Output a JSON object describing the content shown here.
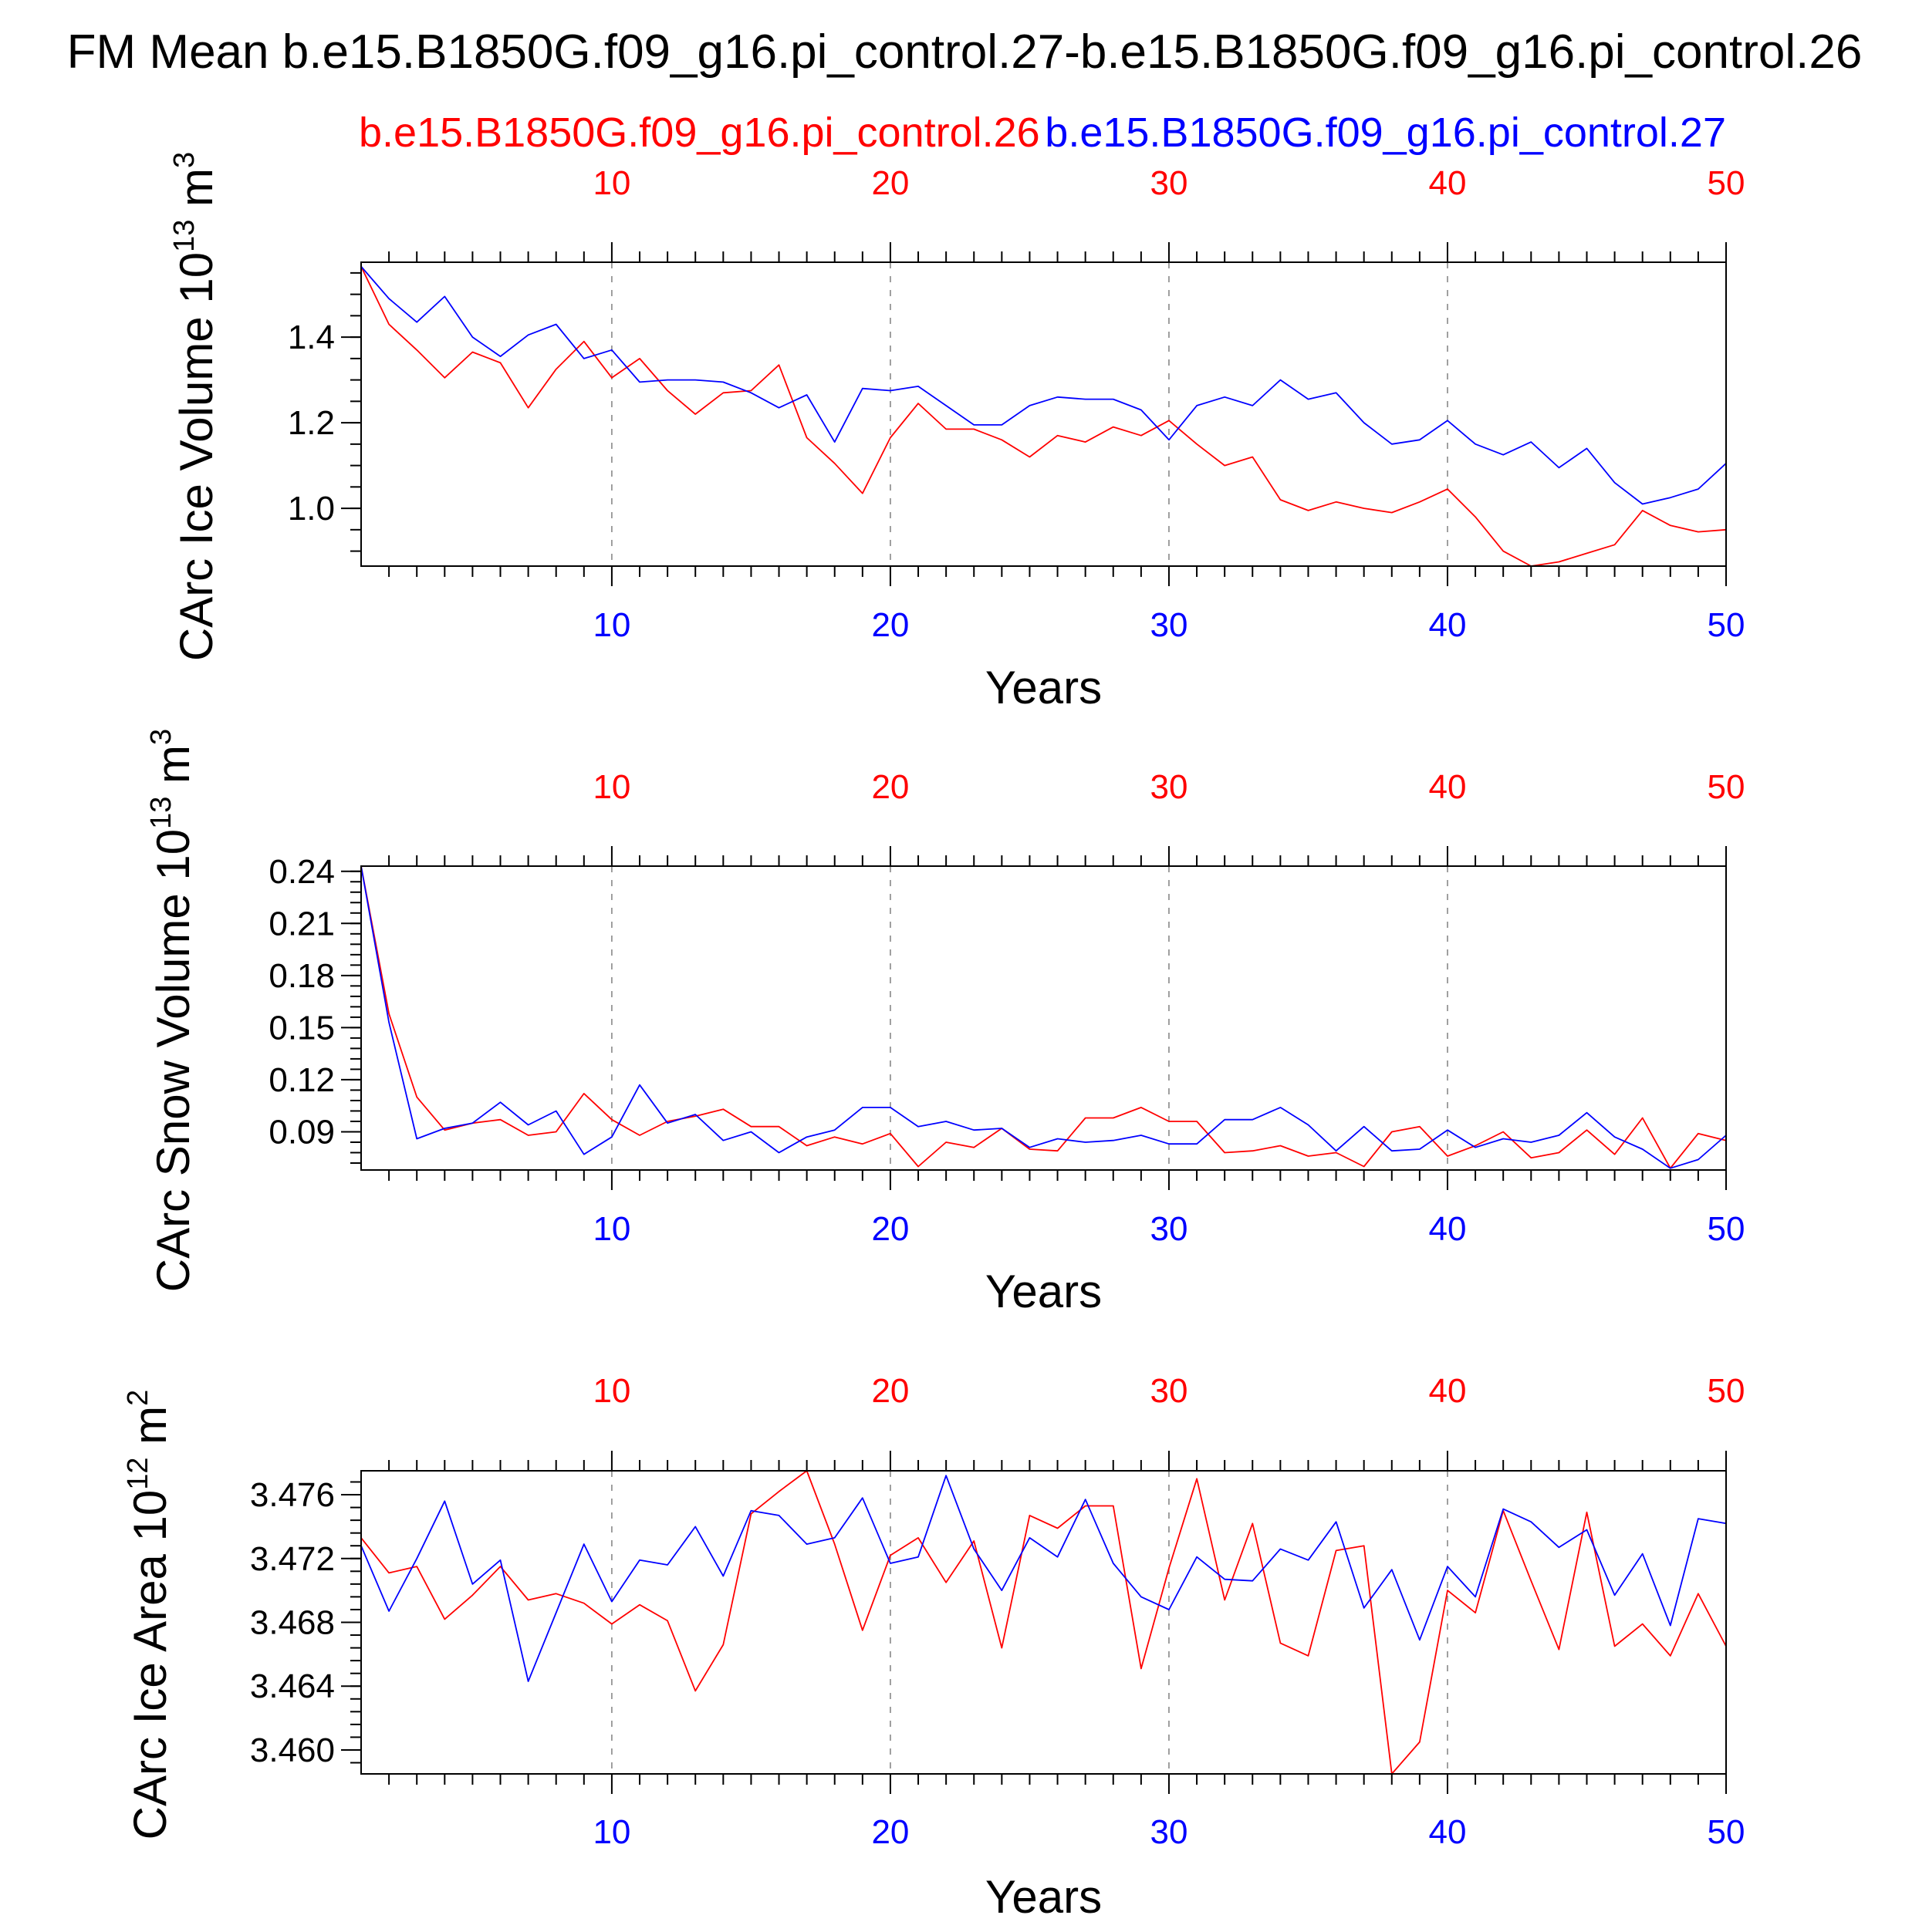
{
  "title": "FM Mean b.e15.B1850G.f09_g16.pi_control.27-b.e15.B1850G.f09_g16.pi_control.26",
  "legend": [
    {
      "name": "b.e15.B1850G.f09_g16.pi_control.26",
      "color": "#ff0000"
    },
    {
      "name": "b.e15.B1850G.f09_g16.pi_control.27",
      "color": "#0000ff"
    }
  ],
  "colors": {
    "red": "#ff0000",
    "blue": "#0000ff",
    "axis": "#000000",
    "grid": "#888888"
  },
  "chart_data": [
    {
      "type": "line",
      "ylabel": "CArc Ice Volume 10",
      "ylabel_exp": "13",
      "ylabel_unit": " m",
      "ylabel_unit_exp": "3",
      "xlabel": "Years",
      "xlim": [
        1,
        50
      ],
      "ylim": [
        0.865,
        1.575
      ],
      "yticks": [
        1.0,
        1.2,
        1.4
      ],
      "ytick_labels": [
        "1.0",
        "1.2",
        "1.4"
      ],
      "yminor_step": 0.05,
      "xticks": [
        10,
        20,
        30,
        40,
        50
      ],
      "xtick_labels": [
        "10",
        "20",
        "30",
        "40",
        "50"
      ],
      "grid": "vertical dashed at major x ticks",
      "series": [
        {
          "name": "b.e15.B1850G.f09_g16.pi_control.26",
          "color": "#ff0000",
          "x": [
            1,
            2,
            3,
            4,
            5,
            6,
            7,
            8,
            9,
            10,
            11,
            12,
            13,
            14,
            15,
            16,
            17,
            18,
            19,
            20,
            21,
            22,
            23,
            24,
            25,
            26,
            27,
            28,
            29,
            30,
            31,
            32,
            33,
            34,
            35,
            36,
            37,
            38,
            39,
            40,
            41,
            42,
            43,
            44,
            45,
            46,
            47,
            48,
            49,
            50
          ],
          "values": [
            1.565,
            1.43,
            1.37,
            1.305,
            1.365,
            1.34,
            1.235,
            1.325,
            1.39,
            1.305,
            1.35,
            1.275,
            1.22,
            1.27,
            1.275,
            1.335,
            1.165,
            1.105,
            1.035,
            1.165,
            1.245,
            1.185,
            1.185,
            1.16,
            1.12,
            1.17,
            1.155,
            1.19,
            1.17,
            1.205,
            1.15,
            1.1,
            1.12,
            1.02,
            0.995,
            1.015,
            1.0,
            0.99,
            1.015,
            1.045,
            0.98,
            0.9,
            0.865,
            0.875,
            0.895,
            0.915,
            0.995,
            0.96,
            0.945,
            0.95
          ]
        },
        {
          "name": "b.e15.B1850G.f09_g16.pi_control.27",
          "color": "#0000ff",
          "x": [
            1,
            2,
            3,
            4,
            5,
            6,
            7,
            8,
            9,
            10,
            11,
            12,
            13,
            14,
            15,
            16,
            17,
            18,
            19,
            20,
            21,
            22,
            23,
            24,
            25,
            26,
            27,
            28,
            29,
            30,
            31,
            32,
            33,
            34,
            35,
            36,
            37,
            38,
            39,
            40,
            41,
            42,
            43,
            44,
            45,
            46,
            47,
            48,
            49,
            50
          ],
          "values": [
            1.565,
            1.49,
            1.435,
            1.495,
            1.4,
            1.355,
            1.405,
            1.43,
            1.35,
            1.37,
            1.295,
            1.3,
            1.3,
            1.295,
            1.27,
            1.235,
            1.265,
            1.155,
            1.28,
            1.275,
            1.285,
            1.24,
            1.195,
            1.195,
            1.24,
            1.26,
            1.255,
            1.255,
            1.23,
            1.16,
            1.24,
            1.26,
            1.24,
            1.3,
            1.255,
            1.27,
            1.2,
            1.15,
            1.16,
            1.205,
            1.15,
            1.125,
            1.155,
            1.095,
            1.14,
            1.06,
            1.01,
            1.025,
            1.045,
            1.105
          ]
        }
      ]
    },
    {
      "type": "line",
      "ylabel": "CArc Snow Volume 10",
      "ylabel_exp": "13",
      "ylabel_unit": " m",
      "ylabel_unit_exp": "3",
      "xlabel": "Years",
      "xlim": [
        1,
        50
      ],
      "ylim": [
        0.068,
        0.243
      ],
      "yticks": [
        0.09,
        0.12,
        0.15,
        0.18,
        0.21,
        0.24
      ],
      "ytick_labels": [
        "0.09",
        "0.12",
        "0.15",
        "0.18",
        "0.21",
        "0.24"
      ],
      "yminor_step": 0.006,
      "xticks": [
        10,
        20,
        30,
        40,
        50
      ],
      "xtick_labels": [
        "10",
        "20",
        "30",
        "40",
        "50"
      ],
      "grid": "vertical dashed at major x ticks",
      "series": [
        {
          "name": "b.e15.B1850G.f09_g16.pi_control.26",
          "color": "#ff0000",
          "x": [
            1,
            2,
            3,
            4,
            5,
            6,
            7,
            8,
            9,
            10,
            11,
            12,
            13,
            14,
            15,
            16,
            17,
            18,
            19,
            20,
            21,
            22,
            23,
            24,
            25,
            26,
            27,
            28,
            29,
            30,
            31,
            32,
            33,
            34,
            35,
            36,
            37,
            38,
            39,
            40,
            41,
            42,
            43,
            44,
            45,
            46,
            47,
            48,
            49,
            50
          ],
          "values": [
            0.243,
            0.158,
            0.11,
            0.091,
            0.095,
            0.097,
            0.088,
            0.09,
            0.112,
            0.097,
            0.088,
            0.096,
            0.099,
            0.103,
            0.093,
            0.093,
            0.082,
            0.087,
            0.083,
            0.089,
            0.07,
            0.084,
            0.081,
            0.092,
            0.08,
            0.079,
            0.098,
            0.098,
            0.104,
            0.096,
            0.096,
            0.078,
            0.079,
            0.082,
            0.076,
            0.078,
            0.07,
            0.09,
            0.093,
            0.076,
            0.082,
            0.09,
            0.075,
            0.078,
            0.091,
            0.077,
            0.098,
            0.069,
            0.089,
            0.085
          ]
        },
        {
          "name": "b.e15.B1850G.f09_g16.pi_control.27",
          "color": "#0000ff",
          "x": [
            1,
            2,
            3,
            4,
            5,
            6,
            7,
            8,
            9,
            10,
            11,
            12,
            13,
            14,
            15,
            16,
            17,
            18,
            19,
            20,
            21,
            22,
            23,
            24,
            25,
            26,
            27,
            28,
            29,
            30,
            31,
            32,
            33,
            34,
            35,
            36,
            37,
            38,
            39,
            40,
            41,
            42,
            43,
            44,
            45,
            46,
            47,
            48,
            49,
            50
          ],
          "values": [
            0.243,
            0.153,
            0.086,
            0.092,
            0.095,
            0.107,
            0.094,
            0.102,
            0.077,
            0.087,
            0.117,
            0.095,
            0.1,
            0.085,
            0.09,
            0.078,
            0.087,
            0.091,
            0.104,
            0.104,
            0.093,
            0.096,
            0.091,
            0.092,
            0.081,
            0.086,
            0.084,
            0.085,
            0.088,
            0.083,
            0.083,
            0.097,
            0.097,
            0.104,
            0.094,
            0.079,
            0.093,
            0.079,
            0.08,
            0.091,
            0.081,
            0.086,
            0.084,
            0.088,
            0.101,
            0.087,
            0.08,
            0.069,
            0.074,
            0.088
          ]
        }
      ]
    },
    {
      "type": "line",
      "ylabel": "CArc Ice Area 10",
      "ylabel_exp": "12",
      "ylabel_unit": " m",
      "ylabel_unit_exp": "2",
      "xlabel": "Years",
      "xlim": [
        1,
        50
      ],
      "ylim": [
        3.4585,
        3.4775
      ],
      "yticks": [
        3.46,
        3.464,
        3.468,
        3.472,
        3.476
      ],
      "ytick_labels": [
        "3.460",
        "3.464",
        "3.468",
        "3.472",
        "3.476"
      ],
      "yminor_step": 0.0008,
      "xticks": [
        10,
        20,
        30,
        40,
        50
      ],
      "xtick_labels": [
        "10",
        "20",
        "30",
        "40",
        "50"
      ],
      "grid": "vertical dashed at major x ticks",
      "series": [
        {
          "name": "b.e15.B1850G.f09_g16.pi_control.26",
          "color": "#ff0000",
          "x": [
            1,
            2,
            3,
            4,
            5,
            6,
            7,
            8,
            9,
            10,
            11,
            12,
            13,
            14,
            15,
            16,
            17,
            18,
            19,
            20,
            21,
            22,
            23,
            24,
            25,
            26,
            27,
            28,
            29,
            30,
            31,
            32,
            33,
            34,
            35,
            36,
            37,
            38,
            39,
            40,
            41,
            42,
            43,
            44,
            45,
            46,
            47,
            48,
            49,
            50
          ],
          "values": [
            3.4733,
            3.4711,
            3.4715,
            3.4682,
            3.4697,
            3.4715,
            3.4694,
            3.4698,
            3.4692,
            3.4679,
            3.4691,
            3.4681,
            3.4637,
            3.4666,
            3.4748,
            3.4762,
            3.4775,
            3.4729,
            3.4675,
            3.4722,
            3.4733,
            3.4705,
            3.4731,
            3.4664,
            3.4747,
            3.4739,
            3.4753,
            3.4753,
            3.4651,
            3.4714,
            3.477,
            3.4694,
            3.4742,
            3.4667,
            3.4659,
            3.4725,
            3.4728,
            3.4585,
            3.4605,
            3.47,
            3.4686,
            3.475,
            3.4706,
            3.4663,
            3.4749,
            3.4665,
            3.4679,
            3.4659,
            3.4698,
            3.4665
          ]
        },
        {
          "name": "b.e15.B1850G.f09_g16.pi_control.27",
          "color": "#0000ff",
          "x": [
            1,
            2,
            3,
            4,
            5,
            6,
            7,
            8,
            9,
            10,
            11,
            12,
            13,
            14,
            15,
            16,
            17,
            18,
            19,
            20,
            21,
            22,
            23,
            24,
            25,
            26,
            27,
            28,
            29,
            30,
            31,
            32,
            33,
            34,
            35,
            36,
            37,
            38,
            39,
            40,
            41,
            42,
            43,
            44,
            45,
            46,
            47,
            48,
            49,
            50
          ],
          "values": [
            3.4728,
            3.4687,
            3.472,
            3.4756,
            3.4704,
            3.4719,
            3.4643,
            3.4686,
            3.4729,
            3.4693,
            3.4719,
            3.4716,
            3.474,
            3.4709,
            3.475,
            3.4747,
            3.4729,
            3.4733,
            3.4758,
            3.4717,
            3.4721,
            3.4772,
            3.4726,
            3.47,
            3.4733,
            3.4721,
            3.4757,
            3.4717,
            3.4696,
            3.4688,
            3.4721,
            3.4707,
            3.4706,
            3.4726,
            3.4719,
            3.4743,
            3.4689,
            3.4713,
            3.4669,
            3.4715,
            3.4696,
            3.4751,
            3.4743,
            3.4727,
            3.4738,
            3.4697,
            3.4723,
            3.4678,
            3.4745,
            3.4742
          ]
        }
      ]
    }
  ]
}
